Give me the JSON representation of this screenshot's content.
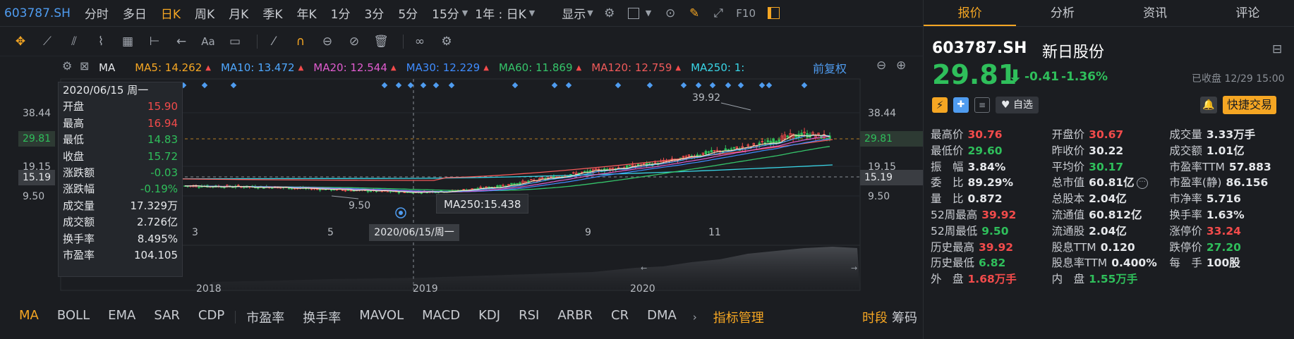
{
  "toolbar": {
    "code": "603787.SH",
    "timeframes": [
      "分时",
      "多日",
      "日K",
      "周K",
      "月K",
      "季K",
      "年K",
      "1分",
      "3分",
      "5分",
      "15分",
      "1年 : 日K"
    ],
    "active_timeframe_index": 2,
    "display_label": "显示",
    "f10_label": "F10"
  },
  "chart": {
    "indicator": "MA",
    "ma": [
      {
        "label": "MA5:",
        "value": "14.262",
        "color": "#f5a623"
      },
      {
        "label": "MA10:",
        "value": "13.472",
        "color": "#4fa8ff"
      },
      {
        "label": "MA20:",
        "value": "12.544",
        "color": "#e05ccf"
      },
      {
        "label": "MA30:",
        "value": "12.229",
        "color": "#3f8cff"
      },
      {
        "label": "MA60:",
        "value": "11.869",
        "color": "#35c46a"
      },
      {
        "label": "MA120:",
        "value": "12.759",
        "color": "#f05a5a"
      },
      {
        "label": "MA250:",
        "value": "1:",
        "color": "#39d5e6"
      }
    ],
    "adjust_label": "前复权",
    "left_axis": [
      "38.44",
      "19.15",
      "9.50"
    ],
    "current_price": "29.81",
    "crosshair_price": "15.19",
    "right_axis": [
      "38.44",
      "29.81",
      "19.15",
      "15.19",
      "9.50"
    ],
    "high_label": "39.92",
    "low_label": "9.50",
    "ma250_tooltip": "MA250:15.438",
    "crosshair_date": "2020/06/15/周一",
    "months": [
      "3",
      "5",
      "9",
      "11"
    ],
    "years": [
      "2018",
      "2019",
      "2020"
    ]
  },
  "infobox": {
    "date": "2020/06/15 周一",
    "rows": [
      {
        "k": "开盘",
        "v": "15.90",
        "color": "#f24b4b"
      },
      {
        "k": "最高",
        "v": "16.94",
        "color": "#f24b4b"
      },
      {
        "k": "最低",
        "v": "14.83",
        "color": "#2fbf5b"
      },
      {
        "k": "收盘",
        "v": "15.72",
        "color": "#2fbf5b"
      },
      {
        "k": "涨跌额",
        "v": "-0.03",
        "color": "#2fbf5b"
      },
      {
        "k": "涨跌幅",
        "v": "-0.19%",
        "color": "#2fbf5b"
      },
      {
        "k": "成交量",
        "v": "17.329万",
        "color": "#e6e8eb"
      },
      {
        "k": "成交额",
        "v": "2.726亿",
        "color": "#e6e8eb"
      },
      {
        "k": "换手率",
        "v": "8.495%",
        "color": "#e6e8eb"
      },
      {
        "k": "市盈率",
        "v": "104.105",
        "color": "#e6e8eb"
      }
    ]
  },
  "bottom": {
    "indicators": [
      "MA",
      "BOLL",
      "EMA",
      "SAR",
      "CDP",
      "市盈率",
      "换手率",
      "MAVOL",
      "MACD",
      "KDJ",
      "RSI",
      "ARBR",
      "CR",
      "DMA"
    ],
    "manage": "指标管理",
    "period": "时段",
    "chips": "筹码"
  },
  "panel": {
    "tabs": [
      "报价",
      "分析",
      "资讯",
      "评论"
    ],
    "code": "603787.SH",
    "name": "新日股份",
    "price": "29.81",
    "change": "-0.41",
    "pct": "-1.36%",
    "status": "已收盘 12/29 15:00",
    "watch_label": "自选",
    "trade_label": "快捷交易",
    "stats": [
      [
        {
          "k": "最高价",
          "v": "30.76",
          "c": "red"
        },
        {
          "k": "开盘价",
          "v": "30.67",
          "c": "red"
        },
        {
          "k": "成交量",
          "v": "3.33万手",
          "c": "white"
        }
      ],
      [
        {
          "k": "最低价",
          "v": "29.60",
          "c": "green"
        },
        {
          "k": "昨收价",
          "v": "30.22",
          "c": "white"
        },
        {
          "k": "成交额",
          "v": "1.01亿",
          "c": "white"
        }
      ],
      [
        {
          "k": "振　幅",
          "v": "3.84%",
          "c": "white"
        },
        {
          "k": "平均价",
          "v": "30.17",
          "c": "green"
        },
        {
          "k": "市盈率TTM",
          "v": "57.883",
          "c": "white"
        }
      ],
      [
        {
          "k": "委　比",
          "v": "89.29%",
          "c": "white"
        },
        {
          "k": "总市值",
          "v": "60.81亿",
          "c": "white"
        },
        {
          "k": "市盈率(静)",
          "v": "86.156",
          "c": "white"
        }
      ],
      [
        {
          "k": "量　比",
          "v": "0.872",
          "c": "white"
        },
        {
          "k": "总股本",
          "v": "2.04亿",
          "c": "white"
        },
        {
          "k": "市净率",
          "v": "5.716",
          "c": "white"
        }
      ],
      [
        {
          "k": "52周最高",
          "v": "39.92",
          "c": "red"
        },
        {
          "k": "流通值",
          "v": "60.812亿",
          "c": "white"
        },
        {
          "k": "换手率",
          "v": "1.63%",
          "c": "white"
        }
      ],
      [
        {
          "k": "52周最低",
          "v": "9.50",
          "c": "green"
        },
        {
          "k": "流通股",
          "v": "2.04亿",
          "c": "white"
        },
        {
          "k": "涨停价",
          "v": "33.24",
          "c": "red"
        }
      ],
      [
        {
          "k": "历史最高",
          "v": "39.92",
          "c": "red"
        },
        {
          "k": "股息TTM",
          "v": "0.120",
          "c": "white"
        },
        {
          "k": "跌停价",
          "v": "27.20",
          "c": "green"
        }
      ],
      [
        {
          "k": "历史最低",
          "v": "6.82",
          "c": "green"
        },
        {
          "k": "股息率TTM",
          "v": "0.400%",
          "c": "white"
        },
        {
          "k": "每　手",
          "v": "100股",
          "c": "white"
        }
      ],
      [
        {
          "k": "外　盘",
          "v": "1.68万手",
          "c": "red"
        },
        {
          "k": "内　盘",
          "v": "1.55万手",
          "c": "green"
        },
        {
          "k": "",
          "v": "",
          "c": "white"
        }
      ]
    ]
  }
}
